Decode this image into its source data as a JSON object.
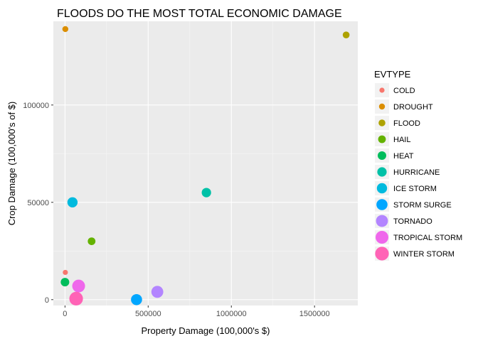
{
  "chart_data": {
    "type": "scatter",
    "title": "FLOODS DO THE MOST TOTAL ECONOMIC DAMAGE",
    "xlabel": "Property Damage (100,000's $)",
    "ylabel": "Crop Damage (100,000's of $)",
    "xlim": [
      -70000,
      1760000
    ],
    "ylim": [
      -3000,
      143000
    ],
    "x_ticks": [
      0,
      500000,
      1000000,
      1500000
    ],
    "x_tick_labels": [
      "0",
      "500000",
      "1000000",
      "1500000"
    ],
    "y_ticks": [
      0,
      50000,
      100000
    ],
    "y_tick_labels": [
      "0",
      "50000",
      "100000"
    ],
    "grid": true,
    "legend_position": "right",
    "legend_title": "EVTYPE",
    "points": [
      {
        "label": "COLD",
        "x": 2000,
        "y": 14000,
        "color": "#F8766D",
        "size_rank": 1
      },
      {
        "label": "DROUGHT",
        "x": 2000,
        "y": 139000,
        "color": "#DB8E00",
        "size_rank": 2
      },
      {
        "label": "FLOOD",
        "x": 1690000,
        "y": 136000,
        "color": "#AEA200",
        "size_rank": 3
      },
      {
        "label": "HAIL",
        "x": 160000,
        "y": 30000,
        "color": "#64B200",
        "size_rank": 4
      },
      {
        "label": "HEAT",
        "x": 0,
        "y": 9000,
        "color": "#00BD5C",
        "size_rank": 5
      },
      {
        "label": "HURRICANE",
        "x": 850000,
        "y": 55000,
        "color": "#00C1A7",
        "size_rank": 6
      },
      {
        "label": "ICE STORM",
        "x": 45000,
        "y": 50000,
        "color": "#00BADE",
        "size_rank": 7
      },
      {
        "label": "STORM SURGE",
        "x": 430000,
        "y": 0,
        "color": "#00A6FF",
        "size_rank": 8
      },
      {
        "label": "TORNADO",
        "x": 555000,
        "y": 4000,
        "color": "#B385FF",
        "size_rank": 9
      },
      {
        "label": "TROPICAL STORM",
        "x": 82000,
        "y": 7000,
        "color": "#EF67EB",
        "size_rank": 10
      },
      {
        "label": "WINTER STORM",
        "x": 67000,
        "y": 500,
        "color": "#FF63B6",
        "size_rank": 11
      }
    ]
  }
}
